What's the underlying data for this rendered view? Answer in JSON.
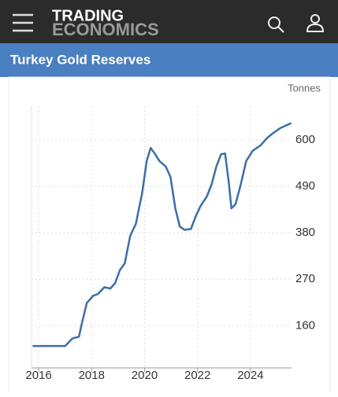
{
  "header": {
    "logo_top": "TRADING",
    "logo_bottom": "ECONOMICS"
  },
  "chart_data": {
    "type": "line",
    "title": "Turkey Gold Reserves",
    "y_label": "Tonnes",
    "x": [
      2015.8,
      2017.0,
      2017.28,
      2017.52,
      2017.64,
      2017.82,
      2018.06,
      2018.24,
      2018.48,
      2018.71,
      2018.89,
      2019.07,
      2019.25,
      2019.46,
      2019.67,
      2019.91,
      2020.08,
      2020.23,
      2020.38,
      2020.56,
      2020.8,
      2020.98,
      2021.16,
      2021.33,
      2021.51,
      2021.75,
      2021.93,
      2022.11,
      2022.35,
      2022.53,
      2022.71,
      2022.89,
      2023.04,
      2023.19,
      2023.28,
      2023.43,
      2023.63,
      2023.84,
      2024.08,
      2024.38,
      2024.62,
      2024.83,
      2025.13,
      2025.51
    ],
    "values": [
      112,
      112,
      130,
      134,
      168,
      214,
      231,
      235,
      251,
      248,
      261,
      292,
      307,
      373,
      401,
      475,
      550,
      581,
      568,
      550,
      537,
      512,
      438,
      395,
      387,
      389,
      419,
      443,
      466,
      494,
      537,
      566,
      568,
      494,
      438,
      447,
      494,
      550,
      574,
      587,
      604,
      615,
      628,
      639
    ],
    "color": "#3b6ea8",
    "xlim": [
      2015.73,
      2025.55
    ],
    "xticks": [
      2016,
      2018,
      2020,
      2022,
      2024
    ],
    "ylim": [
      60,
      680
    ],
    "yticks": [
      160,
      270,
      380,
      490,
      600
    ],
    "grid": true
  }
}
